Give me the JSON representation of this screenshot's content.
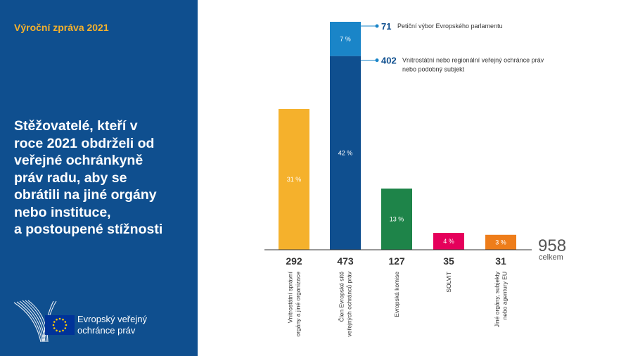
{
  "report_label": "Výroční zpráva 2021",
  "headline": "Stěžovatelé, kteří v\nroce 2021 obdrželi od\nveřejné ochránkyně\npráv radu, aby se\nobrátili na jiné orgány\nnebo instituce,\na postoupené stížnosti",
  "logo_text": "Evropský veřejný\nochránce práv",
  "total": {
    "value": "958",
    "label": "celkem"
  },
  "chart_data": {
    "type": "bar",
    "categories": [
      [
        "Vnitrostátní správní",
        "orgány a jiné organizace"
      ],
      [
        "Člen Evropské sítě",
        "veřejných ochránců práv"
      ],
      [
        "Evropská komise"
      ],
      [
        "SOLVIT"
      ],
      [
        "Jiné orgány, subjekty",
        "nebo agentury EU"
      ]
    ],
    "values": [
      292,
      473,
      127,
      35,
      31
    ],
    "value_labels": [
      "292",
      "473",
      "127",
      "35",
      "31"
    ],
    "percent_labels": [
      "31 %",
      "42 %",
      "13 %",
      "4 %",
      "3 %"
    ],
    "colors": [
      "#f5b12c",
      "#0f4f8f",
      "#1e8449",
      "#e5005b",
      "#ee7d1a"
    ],
    "stacked_bar": {
      "index": 1,
      "segments": [
        {
          "value": 402,
          "color": "#0f4f8f",
          "percent": "42 %",
          "callout_value": "402",
          "callout_text": [
            "Vnitrostátní nebo regionální veřejný ochránce práv",
            "nebo podobný subjekt"
          ]
        },
        {
          "value": 71,
          "color": "#1a85c8",
          "percent": "7 %",
          "callout_value": "71",
          "callout_text": [
            "Petiční výbor Evropského parlamentu"
          ]
        }
      ]
    },
    "callout_value_color": "#0f4f8f",
    "ylim": [
      0,
      473
    ]
  }
}
